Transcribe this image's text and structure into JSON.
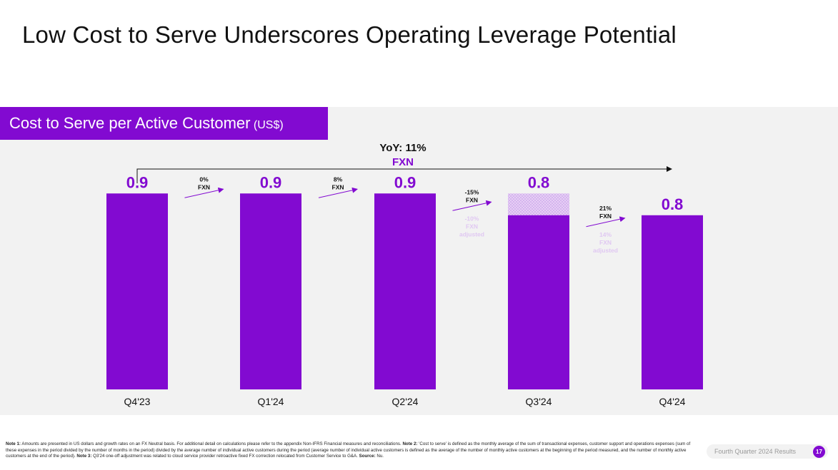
{
  "title": "Low Cost to Serve Underscores Operating Leverage Potential",
  "section": {
    "label": "Cost to Serve per Active Customer",
    "unit": "(US$)"
  },
  "colors": {
    "accent": "#820ad1",
    "adjusted_pattern": "#d9b8ef",
    "faded_label": "#e0c8f2",
    "panel": "#f2f2f2"
  },
  "chart_data": {
    "type": "bar",
    "categories": [
      "Q4'23",
      "Q1'24",
      "Q2'24",
      "Q3'24",
      "Q4'24"
    ],
    "values": [
      0.9,
      0.9,
      0.9,
      0.8,
      0.8
    ],
    "value_labels": [
      "0.9",
      "0.9",
      "0.9",
      "0.8",
      "0.8"
    ],
    "adjusted_overlay": {
      "category": "Q3'24",
      "value": 0.9
    },
    "ylim": [
      0,
      0.95
    ],
    "growth": [
      {
        "line1": "0%",
        "line2": "FXN"
      },
      {
        "line1": "8%",
        "line2": "FXN"
      },
      {
        "line1": "-15%",
        "line2": "FXN",
        "adjusted": [
          "-10%",
          "FXN",
          "adjusted"
        ]
      },
      {
        "line1": "21%",
        "line2": "FXN",
        "adjusted": [
          "14%",
          "FXN",
          "adjusted"
        ]
      }
    ],
    "yoy": {
      "line1": "YoY: 11%",
      "line2": "FXN"
    }
  },
  "footnote": {
    "note1_label": "Note 1:",
    "note1_text": " Amounts are presented in US dollars and growth rates on an FX Neutral basis. For additional detail on calculations please refer to the appendix Non-IFRS Financial measures and reconciliations. ",
    "note2_label": "Note 2:",
    "note2_text": " 'Cost to serve' is defined as the monthly average of the sum of transactional expenses, customer support and operations expenses (sum of these expenses in the period divided by the number of months in the period) divided by the average number of individual active customers during the period (average number of individual active customers is defined as the average of the number of monthly active customers at the beginning of the period measured, and the number of monthly active customers at the end of the period). ",
    "note3_label": "Note 3:",
    "note3_text": " Q3'24 one-off adjustment was related to cloud service provider retroactive fixed FX correction relocated from Customer Service to G&A. ",
    "source_label": "Source:",
    "source_text": " Nu."
  },
  "footer": {
    "text": "Fourth Quarter 2024 Results",
    "page": "17"
  }
}
